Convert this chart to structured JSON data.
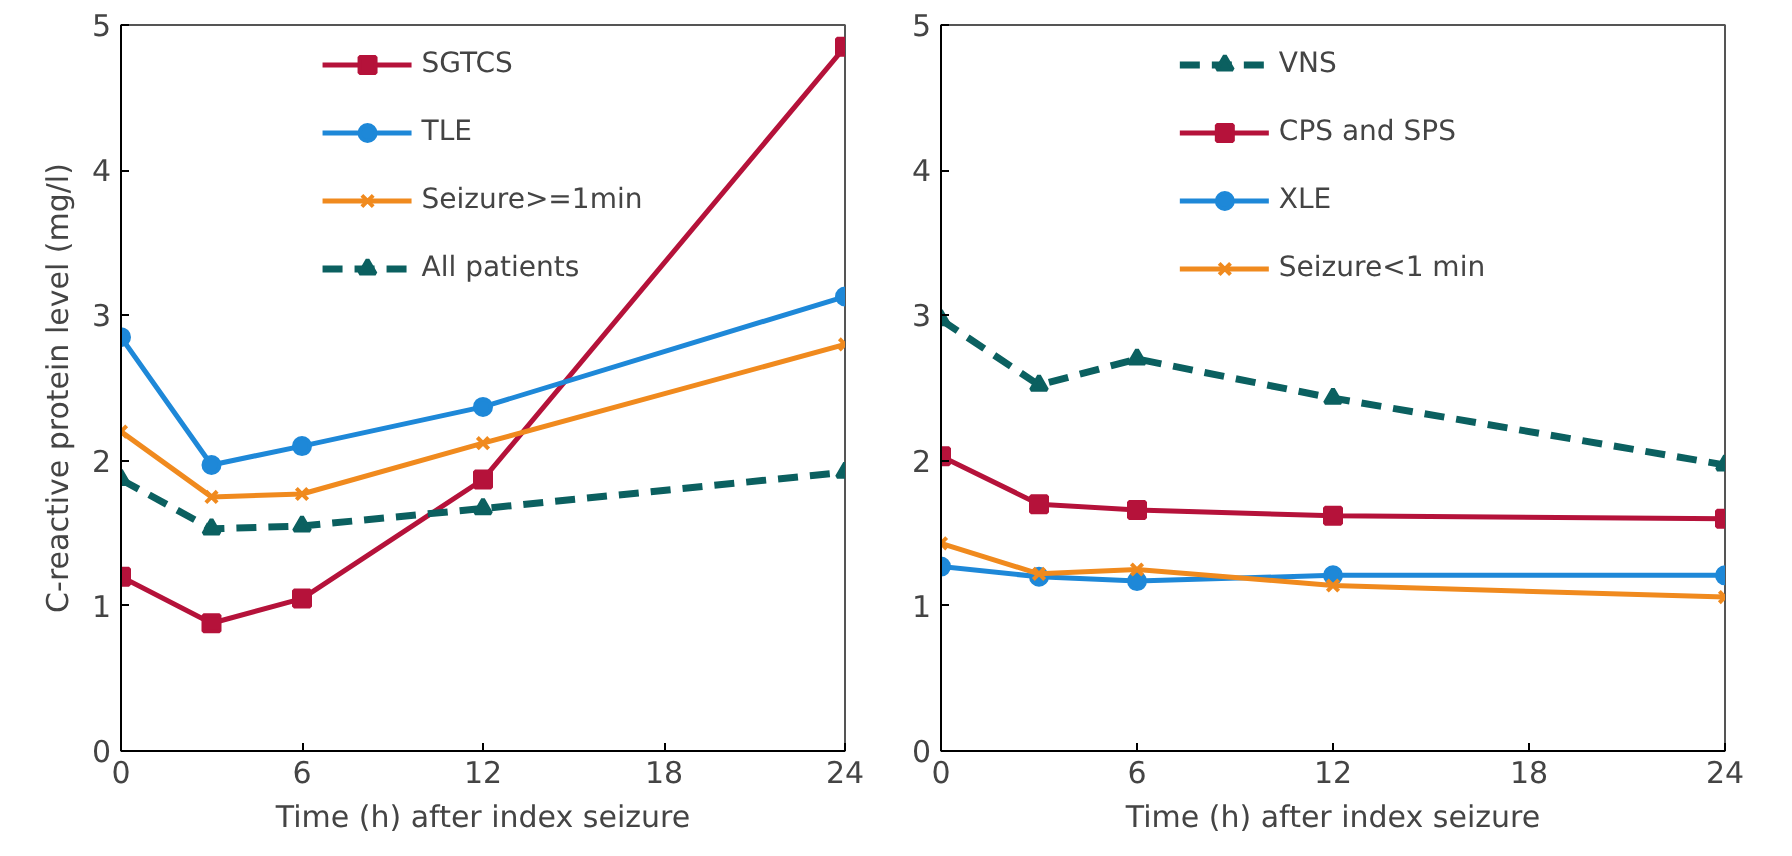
{
  "chart_data": [
    {
      "type": "line",
      "xlabel": "Time (h) after index seizure",
      "ylabel": "C-reactive protein level (mg/l)",
      "x": [
        0,
        3,
        6,
        12,
        24
      ],
      "xlim": [
        0,
        24
      ],
      "xticks": [
        0,
        6,
        12,
        18,
        24
      ],
      "ylim": [
        0,
        5
      ],
      "yticks": [
        0,
        1,
        2,
        3,
        4,
        5
      ],
      "grid": false,
      "legend": "top",
      "series": [
        {
          "name": "SGTCS",
          "color": "#b5123a",
          "marker": "square",
          "line_style": "solid",
          "values": [
            1.2,
            0.88,
            1.05,
            1.87,
            4.85
          ]
        },
        {
          "name": "TLE",
          "color": "#1e88d8",
          "marker": "circle",
          "line_style": "solid",
          "values": [
            2.85,
            1.97,
            2.1,
            2.37,
            3.13
          ]
        },
        {
          "name": "Seizure>=1min",
          "color": "#f08a1e",
          "marker": "cross",
          "line_style": "solid",
          "values": [
            2.2,
            1.75,
            1.77,
            2.12,
            2.8
          ]
        },
        {
          "name": "All patients",
          "color": "#0b6060",
          "marker": "triangle",
          "line_style": "dashed",
          "values": [
            1.87,
            1.53,
            1.55,
            1.67,
            1.92
          ]
        }
      ]
    },
    {
      "type": "line",
      "xlabel": "Time (h) after index seizure",
      "x": [
        0,
        3,
        6,
        12,
        24
      ],
      "xlim": [
        0,
        24
      ],
      "xticks": [
        0,
        6,
        12,
        18,
        24
      ],
      "ylim": [
        0,
        5
      ],
      "yticks": [
        0,
        1,
        2,
        3,
        4,
        5
      ],
      "grid": false,
      "legend": "top",
      "series": [
        {
          "name": "VNS",
          "color": "#0b6060",
          "marker": "triangle",
          "line_style": "dashed",
          "values": [
            2.97,
            2.52,
            2.7,
            2.43,
            1.97
          ]
        },
        {
          "name": "CPS and SPS",
          "color": "#b5123a",
          "marker": "square",
          "line_style": "solid",
          "values": [
            2.03,
            1.7,
            1.66,
            1.62,
            1.6
          ]
        },
        {
          "name": "XLE",
          "color": "#1e88d8",
          "marker": "circle",
          "line_style": "solid",
          "values": [
            1.27,
            1.2,
            1.17,
            1.21,
            1.21
          ]
        },
        {
          "name": "Seizure<1 min",
          "color": "#f08a1e",
          "marker": "cross",
          "line_style": "solid",
          "values": [
            1.43,
            1.22,
            1.25,
            1.14,
            1.06
          ]
        }
      ]
    }
  ]
}
